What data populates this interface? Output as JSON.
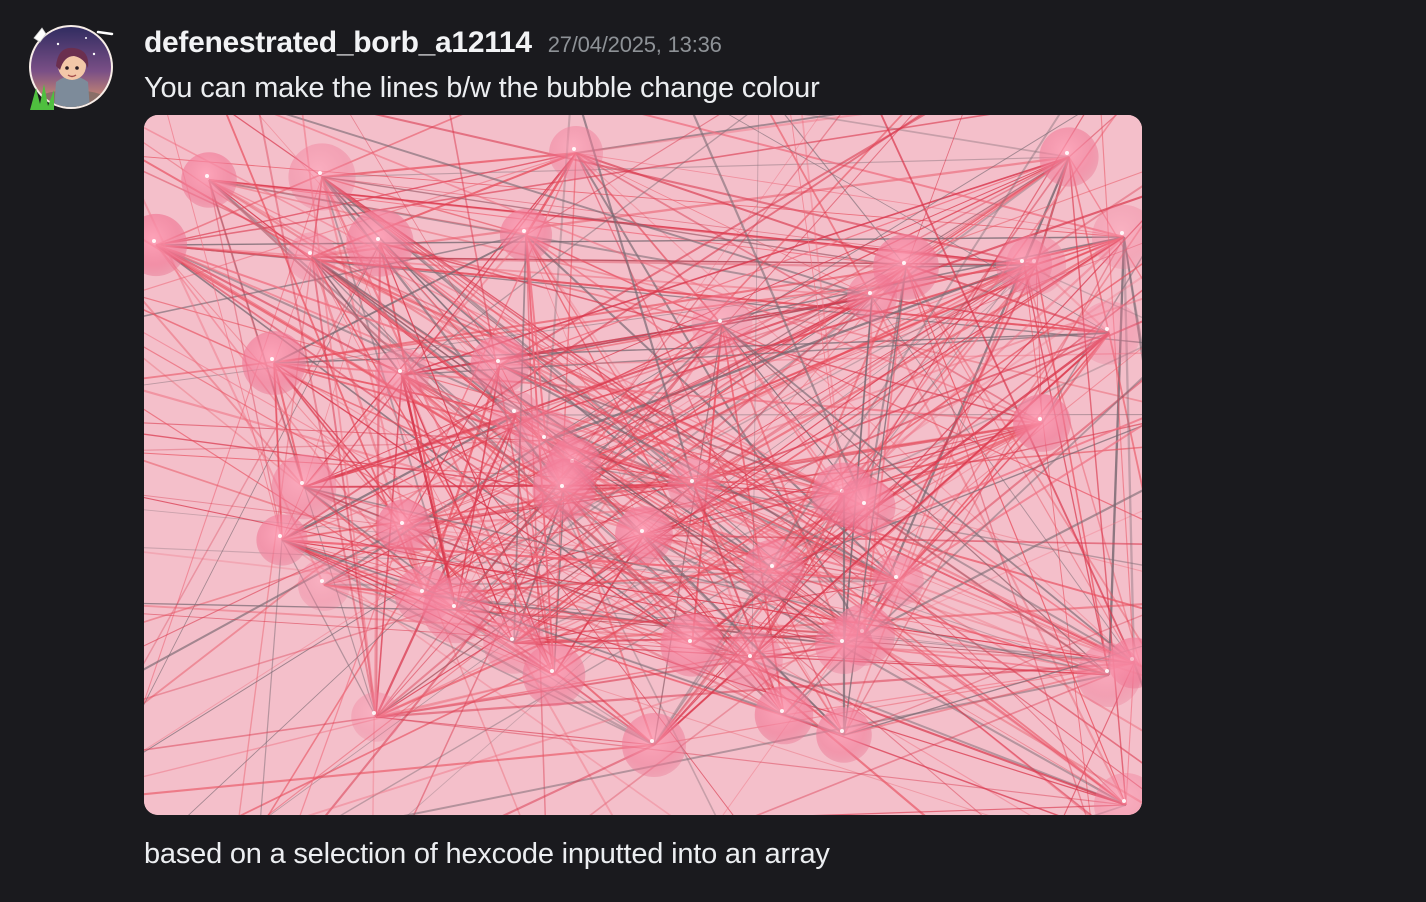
{
  "message": {
    "author": "defenestrated_borb_a12114",
    "timestamp": "27/04/2025, 13:36",
    "lines": [
      "You can make the lines b/w the bubble change colour",
      "based on a selection of hexcode inputted into an array"
    ],
    "avatar": {
      "icon": "user-avatar-icon"
    },
    "attachment": {
      "type": "image",
      "subject": "network-of-pink-bubbles-with-connecting-lines",
      "background_color": "#f4bfca",
      "line_colors": [
        "#e8505f",
        "#d9394e",
        "#7a6a73",
        "#ef6f80"
      ],
      "bubble_color": "#f17a97"
    }
  },
  "theme": {
    "background": "#1a1a1e",
    "username_color": "#f2f3f5",
    "timestamp_color": "#8e9297",
    "text_color": "#eceef1"
  }
}
